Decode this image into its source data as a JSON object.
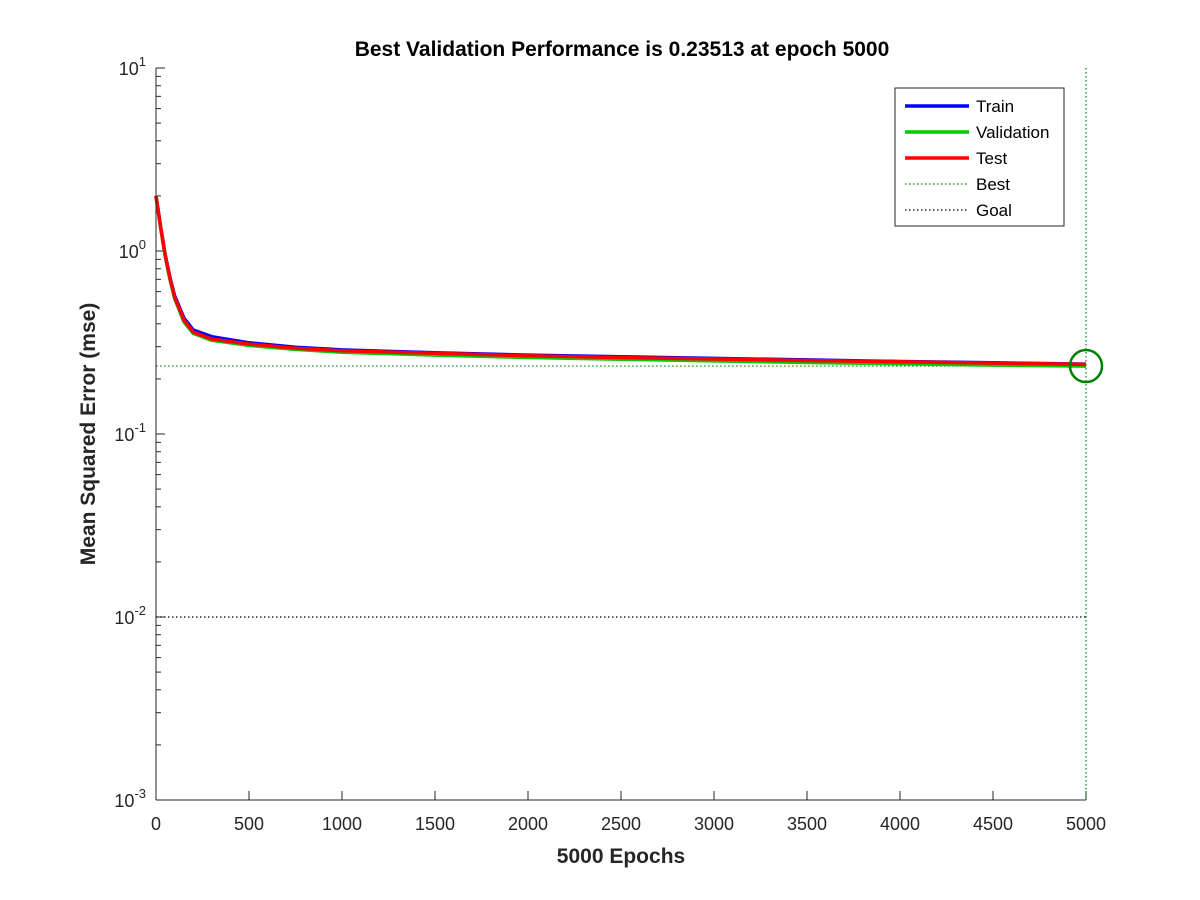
{
  "chart_data": {
    "type": "line",
    "title": "Best Validation Performance is 0.23513 at epoch 5000",
    "xlabel": "5000 Epochs",
    "ylabel": "Mean Squared Error  (mse)",
    "xlim": [
      0,
      5000
    ],
    "ylim": [
      0.001,
      10
    ],
    "yscale": "log",
    "x_ticks": [
      "0",
      "500",
      "1000",
      "1500",
      "2000",
      "2500",
      "3000",
      "3500",
      "4000",
      "4500",
      "5000"
    ],
    "y_ticks": [
      {
        "base": "10",
        "exp": "-3"
      },
      {
        "base": "10",
        "exp": "-2"
      },
      {
        "base": "10",
        "exp": "-1"
      },
      {
        "base": "10",
        "exp": "0"
      },
      {
        "base": "10",
        "exp": "1"
      }
    ],
    "grid": false,
    "legend_position": "top-right",
    "series": [
      {
        "name": "Train",
        "color": "#0000ff",
        "style": "solid",
        "x": [
          0,
          25,
          50,
          75,
          100,
          150,
          200,
          300,
          500,
          750,
          1000,
          1500,
          2000,
          2500,
          3000,
          3500,
          4000,
          4500,
          5000
        ],
        "y": [
          2.0,
          1.35,
          0.95,
          0.72,
          0.57,
          0.43,
          0.37,
          0.34,
          0.315,
          0.298,
          0.288,
          0.278,
          0.27,
          0.264,
          0.259,
          0.254,
          0.249,
          0.245,
          0.241
        ]
      },
      {
        "name": "Validation",
        "color": "#00cc00",
        "style": "solid",
        "x": [
          0,
          25,
          50,
          75,
          100,
          150,
          200,
          300,
          500,
          750,
          1000,
          1500,
          2000,
          2500,
          3000,
          3500,
          4000,
          4500,
          5000
        ],
        "y": [
          2.0,
          1.33,
          0.93,
          0.7,
          0.55,
          0.41,
          0.355,
          0.325,
          0.305,
          0.29,
          0.28,
          0.27,
          0.262,
          0.256,
          0.251,
          0.246,
          0.242,
          0.238,
          0.235
        ]
      },
      {
        "name": "Test",
        "color": "#ff0000",
        "style": "solid",
        "x": [
          0,
          25,
          50,
          75,
          100,
          150,
          200,
          300,
          500,
          750,
          1000,
          1500,
          2000,
          2500,
          3000,
          3500,
          4000,
          4500,
          5000
        ],
        "y": [
          2.0,
          1.34,
          0.94,
          0.71,
          0.56,
          0.42,
          0.36,
          0.33,
          0.31,
          0.294,
          0.285,
          0.276,
          0.268,
          0.262,
          0.257,
          0.252,
          0.248,
          0.244,
          0.24
        ]
      },
      {
        "name": "Best",
        "color": "#008000",
        "style": "dotted",
        "x_line": 5000,
        "y_line": 0.23513
      },
      {
        "name": "Goal",
        "color": "#000000",
        "style": "dotted",
        "y_line": 0.01
      }
    ],
    "best_marker": {
      "x": 5000,
      "y": 0.23513,
      "color": "#008000",
      "shape": "circle"
    }
  }
}
